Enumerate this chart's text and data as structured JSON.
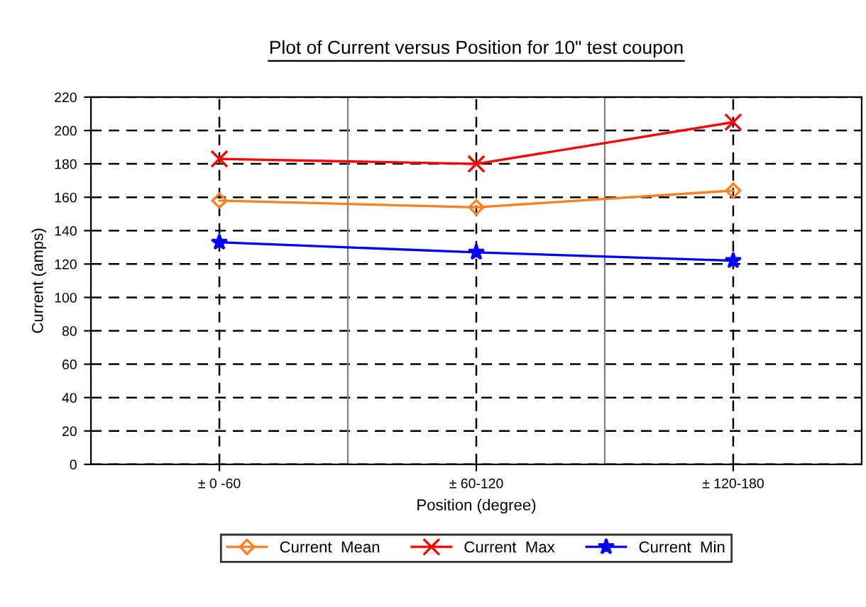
{
  "chart_data": {
    "type": "line",
    "title": "Plot of Current versus Position for 10\" test coupon",
    "xlabel": "Position (degree)",
    "ylabel": "Current (amps)",
    "categories": [
      "± 0 -60",
      "± 60-120",
      "± 120-180"
    ],
    "series": [
      {
        "name": "Current  Mean",
        "color": "#ff7f1f",
        "marker": "diamond",
        "values": [
          158,
          154,
          164
        ]
      },
      {
        "name": "Current  Max",
        "color": "#ff0000",
        "marker": "cross",
        "values": [
          183,
          180,
          205
        ]
      },
      {
        "name": "Current  Min",
        "color": "#0000ff",
        "marker": "star",
        "values": [
          133,
          127,
          122
        ]
      }
    ],
    "ylim": [
      0,
      220
    ],
    "yticks": [
      0,
      20,
      40,
      60,
      80,
      100,
      120,
      140,
      160,
      180,
      200,
      220
    ],
    "grid": true,
    "legend": "bottom",
    "line_style": "solid"
  }
}
